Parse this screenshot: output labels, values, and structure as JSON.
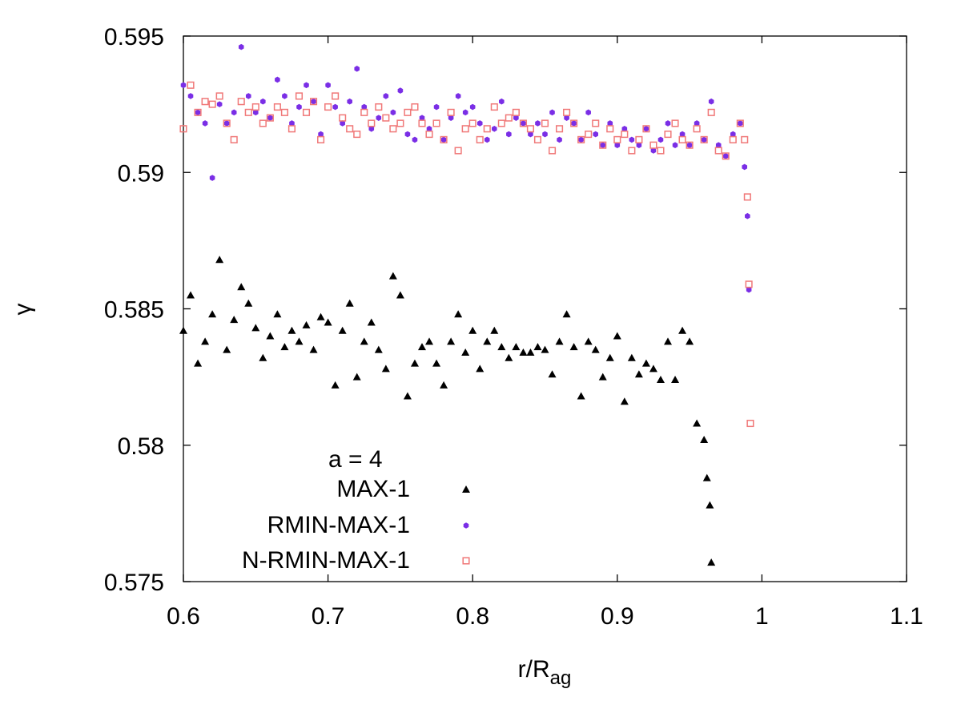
{
  "chart_data": {
    "type": "scatter",
    "title": "",
    "xlabel": "r/R",
    "xlabel_subscript": "ag",
    "ylabel": "γ",
    "xlim": [
      0.6,
      1.1
    ],
    "ylim": [
      0.575,
      0.595
    ],
    "xticks": [
      "0.6",
      "0.7",
      "0.8",
      "0.9",
      "1",
      "1.1"
    ],
    "yticks": [
      "0.575",
      "0.58",
      "0.585",
      "0.59",
      "0.595"
    ],
    "grid": false,
    "legend": {
      "title": "a = 4",
      "placement": "bottom-left",
      "entries": [
        "MAX-1",
        "RMIN-MAX-1",
        "N-RMIN-MAX-1"
      ]
    },
    "series": [
      {
        "name": "MAX-1",
        "marker": "triangle",
        "color": "#000000",
        "x": [
          0.6,
          0.605,
          0.61,
          0.615,
          0.62,
          0.625,
          0.63,
          0.635,
          0.64,
          0.645,
          0.65,
          0.655,
          0.66,
          0.665,
          0.67,
          0.675,
          0.68,
          0.685,
          0.69,
          0.695,
          0.7,
          0.705,
          0.71,
          0.715,
          0.72,
          0.725,
          0.73,
          0.735,
          0.74,
          0.745,
          0.75,
          0.755,
          0.76,
          0.765,
          0.77,
          0.775,
          0.78,
          0.785,
          0.79,
          0.795,
          0.8,
          0.805,
          0.81,
          0.815,
          0.82,
          0.825,
          0.83,
          0.835,
          0.84,
          0.845,
          0.85,
          0.855,
          0.86,
          0.865,
          0.87,
          0.875,
          0.88,
          0.885,
          0.89,
          0.895,
          0.9,
          0.905,
          0.91,
          0.915,
          0.92,
          0.925,
          0.93,
          0.935,
          0.94,
          0.945,
          0.95,
          0.955,
          0.96,
          0.962,
          0.964,
          0.965
        ],
        "y": [
          0.5842,
          0.5855,
          0.583,
          0.5838,
          0.5848,
          0.5868,
          0.5835,
          0.5846,
          0.5858,
          0.5852,
          0.5843,
          0.5832,
          0.584,
          0.5848,
          0.5836,
          0.5842,
          0.5838,
          0.5844,
          0.5835,
          0.5847,
          0.5845,
          0.5822,
          0.5842,
          0.5852,
          0.5825,
          0.5838,
          0.5845,
          0.5835,
          0.5828,
          0.5862,
          0.5855,
          0.5818,
          0.583,
          0.5836,
          0.5838,
          0.583,
          0.5822,
          0.5838,
          0.5848,
          0.5834,
          0.5842,
          0.5828,
          0.5838,
          0.5842,
          0.5836,
          0.5832,
          0.5836,
          0.5834,
          0.5834,
          0.5836,
          0.5835,
          0.5826,
          0.5838,
          0.5848,
          0.5836,
          0.5818,
          0.5838,
          0.5835,
          0.5825,
          0.5832,
          0.584,
          0.5816,
          0.5832,
          0.5826,
          0.583,
          0.5828,
          0.5824,
          0.5838,
          0.5824,
          0.5842,
          0.5838,
          0.5808,
          0.5802,
          0.5788,
          0.5778,
          0.5757
        ]
      },
      {
        "name": "RMIN-MAX-1",
        "marker": "filled-hexagon",
        "color": "#7a2ee6",
        "x": [
          0.6,
          0.605,
          0.61,
          0.615,
          0.62,
          0.625,
          0.63,
          0.635,
          0.64,
          0.645,
          0.65,
          0.655,
          0.66,
          0.665,
          0.67,
          0.675,
          0.68,
          0.685,
          0.69,
          0.695,
          0.7,
          0.705,
          0.71,
          0.715,
          0.72,
          0.725,
          0.73,
          0.735,
          0.74,
          0.745,
          0.75,
          0.755,
          0.76,
          0.765,
          0.77,
          0.775,
          0.78,
          0.785,
          0.79,
          0.795,
          0.8,
          0.805,
          0.81,
          0.815,
          0.82,
          0.825,
          0.83,
          0.835,
          0.84,
          0.845,
          0.85,
          0.855,
          0.86,
          0.865,
          0.87,
          0.875,
          0.88,
          0.885,
          0.89,
          0.895,
          0.9,
          0.905,
          0.91,
          0.915,
          0.92,
          0.925,
          0.93,
          0.935,
          0.94,
          0.945,
          0.95,
          0.955,
          0.96,
          0.965,
          0.97,
          0.975,
          0.98,
          0.985,
          0.988,
          0.99,
          0.991
        ],
        "y": [
          0.5932,
          0.5928,
          0.5922,
          0.5918,
          0.5898,
          0.5925,
          0.5918,
          0.5922,
          0.5946,
          0.5928,
          0.5922,
          0.5926,
          0.592,
          0.5934,
          0.5928,
          0.5918,
          0.5924,
          0.5932,
          0.5926,
          0.5914,
          0.5932,
          0.5924,
          0.5918,
          0.5926,
          0.5938,
          0.5924,
          0.5916,
          0.592,
          0.5928,
          0.5922,
          0.593,
          0.5914,
          0.5912,
          0.592,
          0.5916,
          0.5924,
          0.5912,
          0.592,
          0.5928,
          0.5922,
          0.5924,
          0.5918,
          0.5912,
          0.5916,
          0.5926,
          0.5914,
          0.592,
          0.5918,
          0.5914,
          0.5918,
          0.5914,
          0.5922,
          0.5912,
          0.592,
          0.5918,
          0.5912,
          0.5922,
          0.5914,
          0.591,
          0.5918,
          0.591,
          0.5916,
          0.5912,
          0.591,
          0.5916,
          0.5908,
          0.5912,
          0.5918,
          0.591,
          0.5914,
          0.591,
          0.5918,
          0.5912,
          0.5926,
          0.591,
          0.5906,
          0.5914,
          0.5918,
          0.5902,
          0.5884,
          0.5857
        ]
      },
      {
        "name": "N-RMIN-MAX-1",
        "marker": "open-square",
        "color": "#f07878",
        "x": [
          0.6,
          0.605,
          0.61,
          0.615,
          0.62,
          0.625,
          0.63,
          0.635,
          0.64,
          0.645,
          0.65,
          0.655,
          0.66,
          0.665,
          0.67,
          0.675,
          0.68,
          0.685,
          0.69,
          0.695,
          0.7,
          0.705,
          0.71,
          0.715,
          0.72,
          0.725,
          0.73,
          0.735,
          0.74,
          0.745,
          0.75,
          0.755,
          0.76,
          0.765,
          0.77,
          0.775,
          0.78,
          0.785,
          0.79,
          0.795,
          0.8,
          0.805,
          0.81,
          0.815,
          0.82,
          0.825,
          0.83,
          0.835,
          0.84,
          0.845,
          0.85,
          0.855,
          0.86,
          0.865,
          0.87,
          0.875,
          0.88,
          0.885,
          0.89,
          0.895,
          0.9,
          0.905,
          0.91,
          0.915,
          0.92,
          0.925,
          0.93,
          0.935,
          0.94,
          0.945,
          0.95,
          0.955,
          0.96,
          0.965,
          0.97,
          0.975,
          0.98,
          0.985,
          0.988,
          0.99,
          0.991,
          0.992
        ],
        "y": [
          0.5916,
          0.5932,
          0.5922,
          0.5926,
          0.5925,
          0.5928,
          0.5918,
          0.5912,
          0.5926,
          0.5922,
          0.5924,
          0.5918,
          0.592,
          0.5924,
          0.5922,
          0.5916,
          0.5928,
          0.5922,
          0.5926,
          0.5912,
          0.5924,
          0.5928,
          0.592,
          0.5916,
          0.5914,
          0.5922,
          0.5918,
          0.5924,
          0.592,
          0.5916,
          0.5918,
          0.5922,
          0.5924,
          0.5918,
          0.5914,
          0.5918,
          0.5912,
          0.5922,
          0.5908,
          0.5916,
          0.5918,
          0.5912,
          0.5916,
          0.5924,
          0.5918,
          0.592,
          0.5922,
          0.5918,
          0.5916,
          0.5912,
          0.5918,
          0.5908,
          0.5916,
          0.5922,
          0.5918,
          0.5912,
          0.5914,
          0.5918,
          0.591,
          0.5916,
          0.5912,
          0.5914,
          0.5908,
          0.5912,
          0.5916,
          0.591,
          0.5908,
          0.5914,
          0.5918,
          0.5912,
          0.591,
          0.5916,
          0.5912,
          0.5922,
          0.5908,
          0.5906,
          0.5912,
          0.5918,
          0.5912,
          0.5891,
          0.5859,
          0.5808
        ]
      }
    ]
  }
}
